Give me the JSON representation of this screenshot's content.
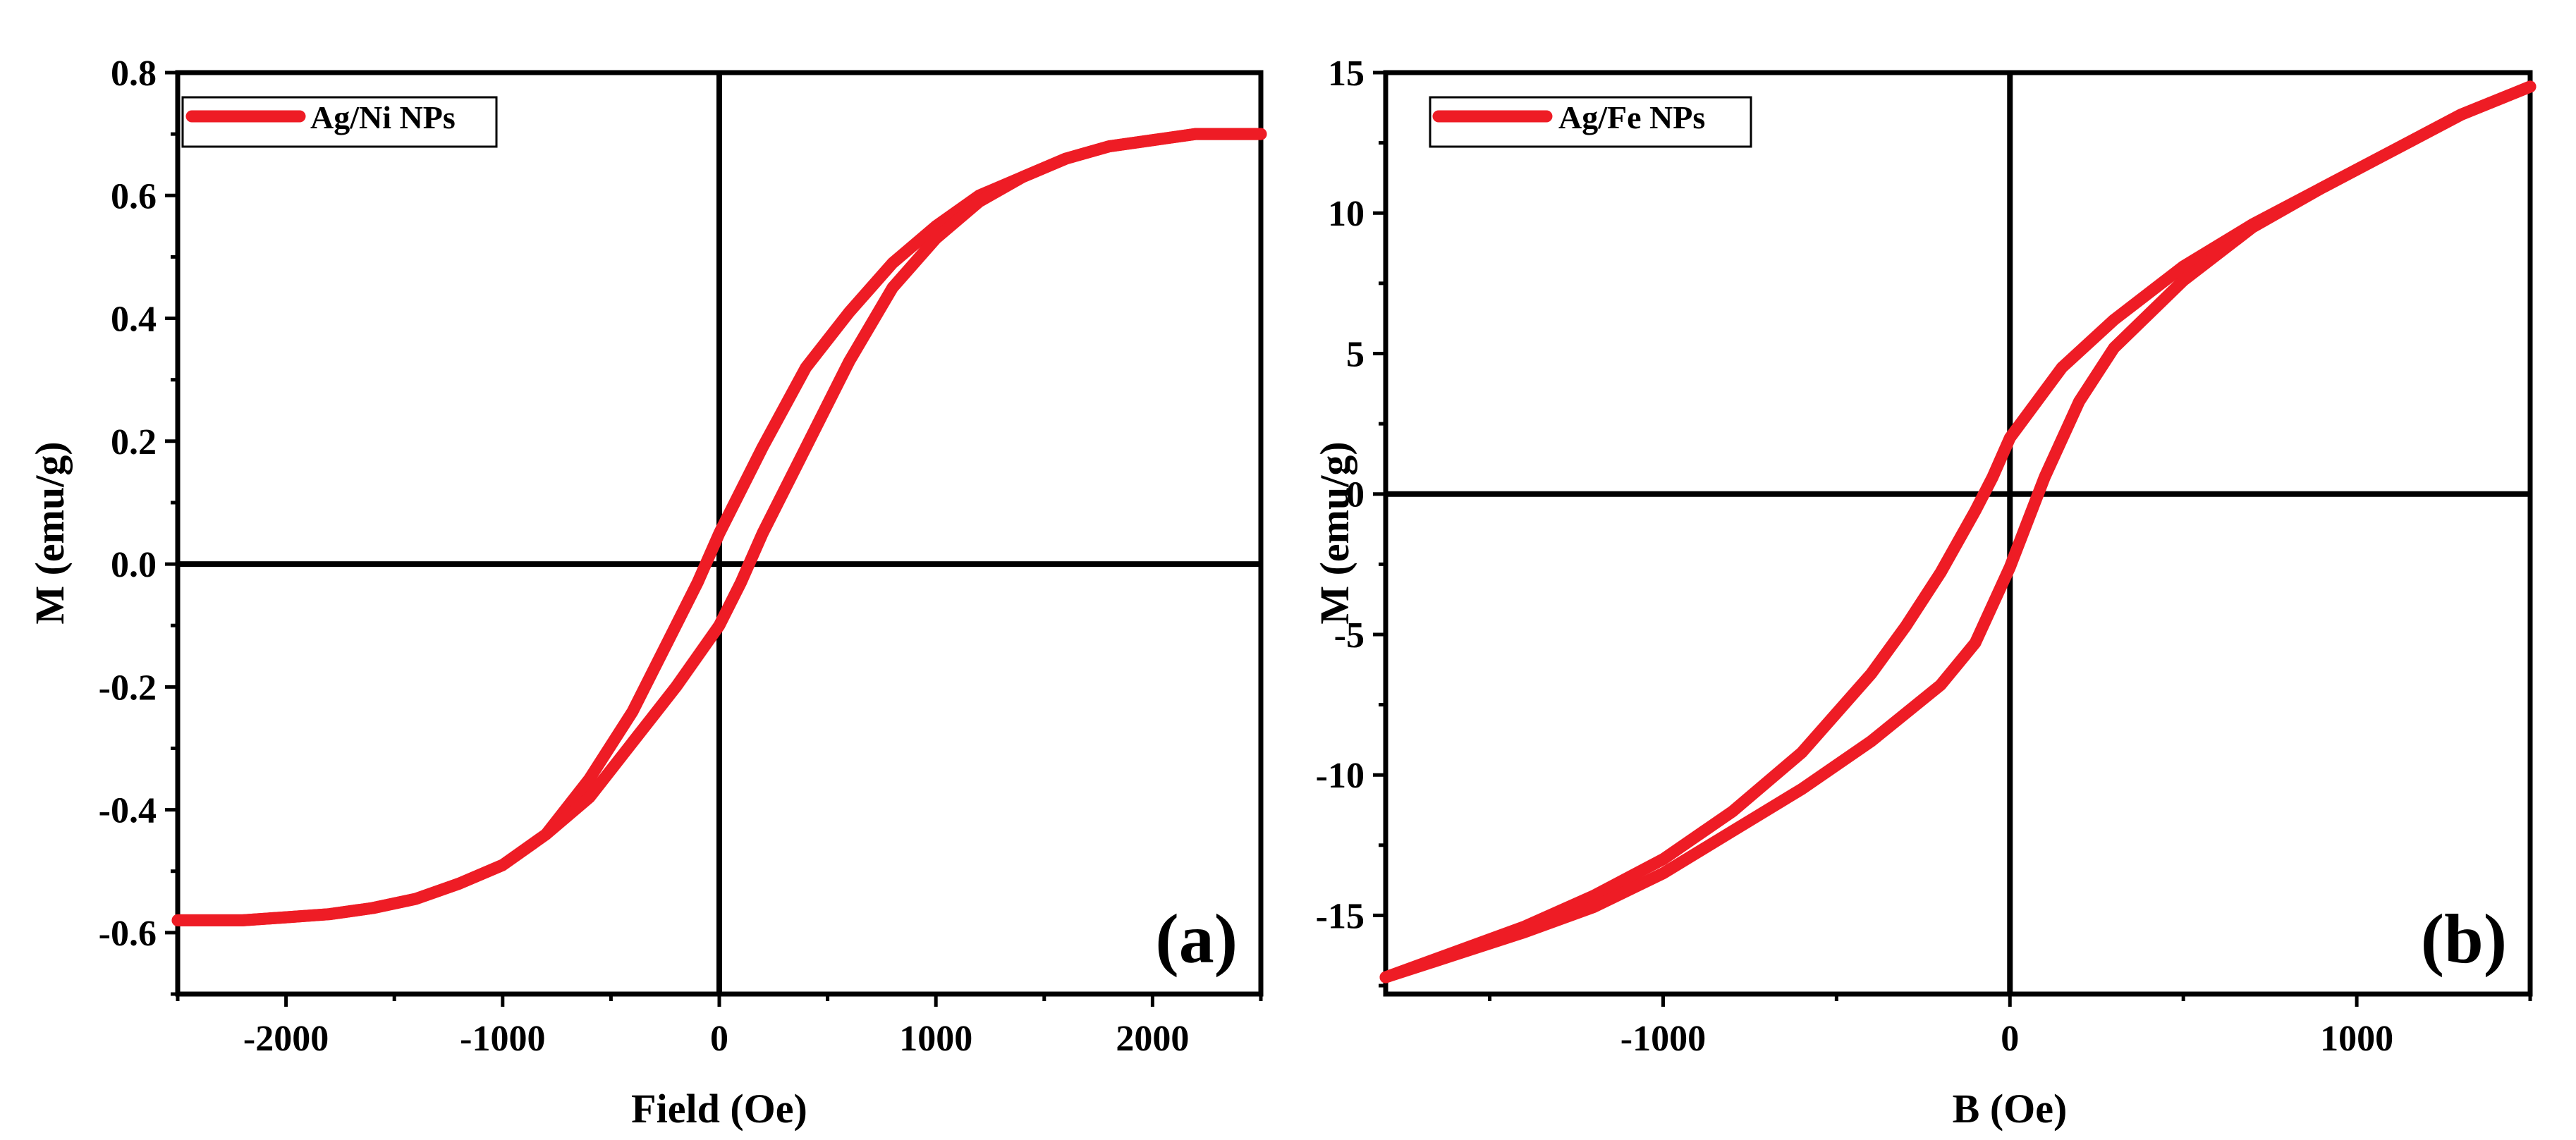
{
  "colors": {
    "series": "#ee1c25",
    "axis": "#000000"
  },
  "chart_data": [
    {
      "type": "line",
      "panel_label": "(a)",
      "xlabel": "Field (Oe)",
      "ylabel": "M (emu/g)",
      "xlim": [
        -2500,
        2500
      ],
      "ylim": [
        -0.7,
        0.8
      ],
      "x_ticks": [
        -2000,
        -1000,
        0,
        1000,
        2000
      ],
      "x_tick_labels": [
        "-2000",
        "-1000",
        "0",
        "1000",
        "2000"
      ],
      "y_ticks": [
        -0.6,
        -0.4,
        -0.2,
        0.0,
        0.2,
        0.4,
        0.6,
        0.8
      ],
      "y_tick_labels": [
        "-0.6",
        "-0.4",
        "-0.2",
        "0.0",
        "0.2",
        "0.4",
        "0.6",
        "0.8"
      ],
      "legend": "Ag/Ni NPs",
      "legend_position": "top-left",
      "series": [
        {
          "name": "Ag/Ni NPs (descending branch)",
          "x": [
            2500,
            2200,
            2000,
            1800,
            1600,
            1400,
            1200,
            1000,
            800,
            600,
            400,
            200,
            0,
            -100,
            -200,
            -400,
            -600,
            -800,
            -1000,
            -1200,
            -1400,
            -1600,
            -1800,
            -2000,
            -2200,
            -2500
          ],
          "y": [
            0.7,
            0.7,
            0.69,
            0.68,
            0.66,
            0.63,
            0.6,
            0.55,
            0.49,
            0.41,
            0.32,
            0.19,
            0.05,
            -0.03,
            -0.1,
            -0.24,
            -0.35,
            -0.44,
            -0.49,
            -0.52,
            -0.545,
            -0.56,
            -0.57,
            -0.575,
            -0.58,
            -0.58
          ]
        },
        {
          "name": "Ag/Ni NPs (ascending branch)",
          "x": [
            -2500,
            -2200,
            -2000,
            -1800,
            -1600,
            -1400,
            -1200,
            -1000,
            -800,
            -600,
            -400,
            -200,
            0,
            100,
            200,
            400,
            600,
            800,
            1000,
            1200,
            1400,
            1600,
            1800,
            2000,
            2200,
            2500
          ],
          "y": [
            -0.58,
            -0.58,
            -0.575,
            -0.57,
            -0.56,
            -0.545,
            -0.52,
            -0.49,
            -0.44,
            -0.38,
            -0.29,
            -0.2,
            -0.1,
            -0.03,
            0.05,
            0.19,
            0.33,
            0.45,
            0.53,
            0.59,
            0.63,
            0.66,
            0.68,
            0.69,
            0.7,
            0.7
          ]
        }
      ]
    },
    {
      "type": "line",
      "panel_label": "(b)",
      "xlabel": "B (Oe)",
      "ylabel": "M (emu/g)",
      "xlim": [
        -1800,
        1500
      ],
      "ylim": [
        -17.8,
        15
      ],
      "x_ticks": [
        -1000,
        0,
        1000
      ],
      "x_tick_labels": [
        "-1000",
        "0",
        "1000"
      ],
      "y_ticks": [
        -15,
        -10,
        -5,
        0,
        5,
        10,
        15
      ],
      "y_tick_labels": [
        "-15",
        "-10",
        "-5",
        "0",
        "5",
        "10",
        "15"
      ],
      "legend": "Ag/Fe NPs",
      "legend_position": "top-left",
      "series": [
        {
          "name": "Ag/Fe NPs (descending branch)",
          "x": [
            1500,
            1300,
            1100,
            900,
            700,
            500,
            300,
            150,
            0,
            -50,
            -100,
            -200,
            -300,
            -400,
            -600,
            -800,
            -1000,
            -1200,
            -1400,
            -1600,
            -1800
          ],
          "y": [
            14.5,
            13.5,
            12.2,
            10.9,
            9.6,
            8.1,
            6.2,
            4.5,
            2.0,
            0.6,
            -0.6,
            -2.8,
            -4.7,
            -6.4,
            -9.2,
            -11.3,
            -13.0,
            -14.3,
            -15.4,
            -16.3,
            -17.2
          ],
          "y_note": "descending"
        },
        {
          "name": "Ag/Fe NPs (ascending branch)",
          "x": [
            -1800,
            -1600,
            -1400,
            -1200,
            -1000,
            -800,
            -600,
            -400,
            -200,
            -100,
            0,
            50,
            100,
            200,
            300,
            500,
            700,
            900,
            1100,
            1300,
            1500
          ],
          "y": [
            -17.2,
            -16.4,
            -15.6,
            -14.7,
            -13.5,
            -12.0,
            -10.5,
            -8.8,
            -6.8,
            -5.3,
            -2.6,
            -1.0,
            0.6,
            3.3,
            5.2,
            7.6,
            9.5,
            10.9,
            12.2,
            13.5,
            14.5
          ]
        }
      ]
    }
  ]
}
